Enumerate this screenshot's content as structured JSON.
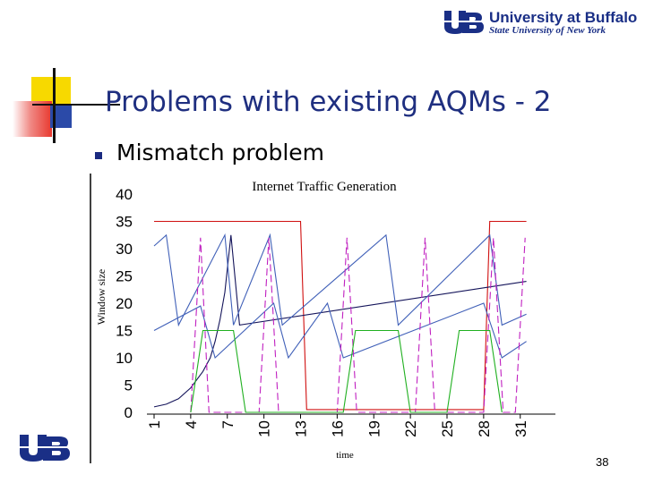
{
  "header": {
    "logo_line1": "University at Buffalo",
    "logo_line2": "State University of New York"
  },
  "title": "Problems with existing AQMs - 2",
  "bullet": "Mismatch problem",
  "page_number": "38",
  "colors": {
    "title": "#1f2f80",
    "logo_blue": "#1a2f86",
    "deco_yellow": "#f7d900",
    "deco_red": "#e8382e",
    "deco_blue": "#2b4aa8"
  },
  "chart_data": {
    "type": "line",
    "title": "Internet Traffic Generation",
    "xlabel": "time",
    "ylabel": "Window size",
    "ylim": [
      0,
      40
    ],
    "xlim": [
      1,
      33
    ],
    "yticks": [
      0,
      5,
      10,
      15,
      20,
      25,
      30,
      35,
      40
    ],
    "xticks": [
      1,
      4,
      7,
      10,
      13,
      16,
      19,
      22,
      25,
      28,
      31
    ],
    "grid": false,
    "series": [
      {
        "color": "#d01010",
        "dash": "",
        "points": [
          [
            1,
            35
          ],
          [
            13,
            35
          ],
          [
            13.5,
            0.5
          ],
          [
            28,
            0.5
          ],
          [
            28.5,
            35
          ],
          [
            31.5,
            35
          ]
        ]
      },
      {
        "color": "#14145a",
        "dash": "",
        "points": [
          [
            1,
            1
          ],
          [
            2,
            1.5
          ],
          [
            3,
            2.5
          ],
          [
            4,
            4.5
          ],
          [
            5,
            7.5
          ],
          [
            5.6,
            10
          ],
          [
            6,
            13
          ],
          [
            6.4,
            17
          ],
          [
            6.8,
            22
          ],
          [
            7.3,
            32.5
          ],
          [
            8,
            16
          ],
          [
            31.5,
            24
          ]
        ]
      },
      {
        "color": "#4060b8",
        "dash": "",
        "points": [
          [
            1,
            30.5
          ],
          [
            2,
            32.5
          ],
          [
            3,
            16
          ],
          [
            6.8,
            32.5
          ],
          [
            7.5,
            16
          ],
          [
            10.5,
            32.5
          ],
          [
            11.5,
            16
          ],
          [
            20,
            32.5
          ],
          [
            21,
            16
          ],
          [
            28.5,
            32.5
          ],
          [
            29.5,
            16
          ],
          [
            31.5,
            18
          ]
        ]
      },
      {
        "color": "#4060b8",
        "dash": "",
        "points": [
          [
            1,
            15
          ],
          [
            4.8,
            19.5
          ],
          [
            6,
            10
          ],
          [
            10.8,
            20
          ],
          [
            12,
            10
          ],
          [
            15.2,
            20
          ],
          [
            16.5,
            10
          ],
          [
            28,
            20
          ],
          [
            29.5,
            10
          ],
          [
            31.5,
            13
          ]
        ]
      },
      {
        "color": "#c020c0",
        "dash": "8,4",
        "points": [
          [
            4,
            0
          ],
          [
            4.8,
            32
          ],
          [
            5.5,
            0
          ],
          [
            9.6,
            0
          ],
          [
            10.4,
            32
          ],
          [
            11.2,
            0
          ],
          [
            16,
            0
          ],
          [
            16.8,
            32
          ],
          [
            17.6,
            0
          ],
          [
            22.4,
            0
          ],
          [
            23.2,
            32
          ],
          [
            24,
            0
          ],
          [
            28,
            0
          ],
          [
            28.8,
            32
          ],
          [
            29.6,
            0
          ],
          [
            30.6,
            0
          ],
          [
            31.4,
            32
          ]
        ]
      },
      {
        "color": "#20b020",
        "dash": "",
        "points": [
          [
            4,
            0
          ],
          [
            5,
            15
          ],
          [
            7.5,
            15
          ],
          [
            8.5,
            0
          ],
          [
            16.5,
            0
          ],
          [
            17.5,
            15
          ],
          [
            21,
            15
          ],
          [
            22,
            0
          ],
          [
            25,
            0
          ],
          [
            26,
            15
          ],
          [
            28.5,
            15
          ],
          [
            29.5,
            0
          ]
        ]
      }
    ]
  }
}
